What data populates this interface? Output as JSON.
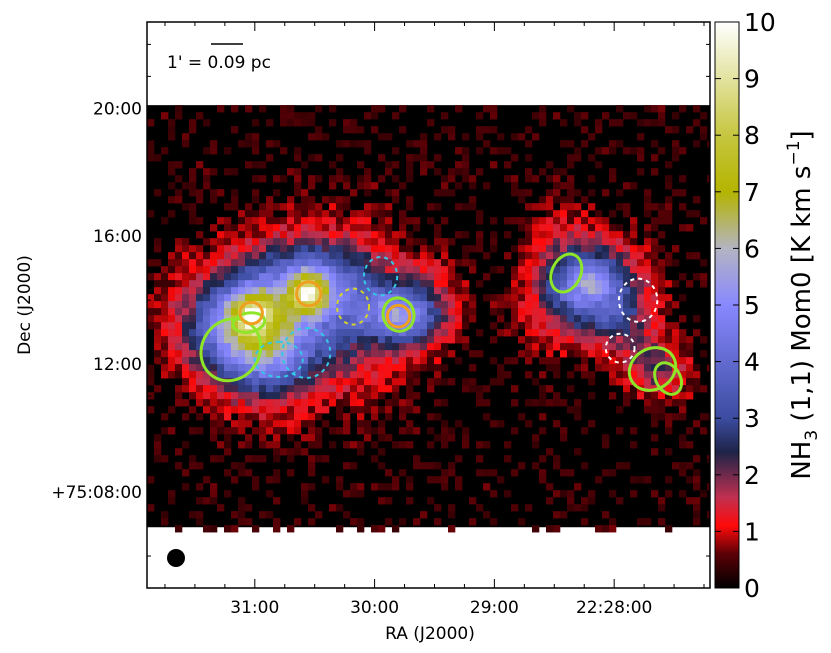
{
  "chart_data": {
    "type": "heatmap",
    "title": "",
    "xlabel": "RA (J2000)",
    "ylabel": "Dec (J2000)",
    "x_ticks": [
      {
        "label": "31:00",
        "ra_min": 31.0
      },
      {
        "label": "30:00",
        "ra_min": 30.0
      },
      {
        "label": "29:00",
        "ra_min": 29.0
      },
      {
        "label": "22:28:00",
        "ra_min": 28.0
      }
    ],
    "y_ticks": [
      {
        "label": "20:00",
        "dec_arcmin": 20
      },
      {
        "label": "16:00",
        "dec_arcmin": 16
      },
      {
        "label": "12:00",
        "dec_arcmin": 12
      },
      {
        "label": "+75:08:00",
        "dec_arcmin": 8
      }
    ],
    "xlim_ra_min": [
      31.9,
      27.2
    ],
    "ylim_dec_arcmin": [
      5.0,
      22.7
    ],
    "image_extent_dec_arcmin": [
      6.9,
      20.1
    ],
    "colorbar": {
      "label_parts": {
        "pre": "NH",
        "sub": "3",
        "mid": " (1,1) Mom0 [K km s",
        "sup": "−1",
        "post": "]"
      },
      "range": [
        0,
        10
      ],
      "ticks": [
        "0",
        "1",
        "2",
        "3",
        "4",
        "5",
        "6",
        "7",
        "8",
        "9",
        "10"
      ],
      "stops": [
        {
          "v": 0,
          "color": "#000000"
        },
        {
          "v": 0.6,
          "color": "#5a0006"
        },
        {
          "v": 1.1,
          "color": "#ff0a0a"
        },
        {
          "v": 1.6,
          "color": "#c03050"
        },
        {
          "v": 2.4,
          "color": "#1e2448"
        },
        {
          "v": 3.0,
          "color": "#3c4ca0"
        },
        {
          "v": 5.0,
          "color": "#8888ff"
        },
        {
          "v": 6.0,
          "color": "#b4b4c2"
        },
        {
          "v": 7.0,
          "color": "#b4b400"
        },
        {
          "v": 8.0,
          "color": "#c6c640"
        },
        {
          "v": 10.0,
          "color": "#ffffff"
        }
      ]
    },
    "emission": [
      {
        "ra_min": 31.25,
        "dec_arcmin": 12.7,
        "a": 0.42,
        "b": 1.2,
        "angle_deg": 48,
        "amp": 2.4
      },
      {
        "ra_min": 31.1,
        "dec_arcmin": 13.2,
        "a": 0.3,
        "b": 0.9,
        "angle_deg": 40,
        "amp": 2.2
      },
      {
        "ra_min": 31.02,
        "dec_arcmin": 13.6,
        "a": 0.13,
        "b": 0.5,
        "angle_deg": 20,
        "amp": 3.5
      },
      {
        "ra_min": 30.95,
        "dec_arcmin": 13.3,
        "a": 0.45,
        "b": 1.1,
        "angle_deg": 70,
        "amp": 1.6
      },
      {
        "ra_min": 30.7,
        "dec_arcmin": 14.0,
        "a": 0.4,
        "b": 1.2,
        "angle_deg": 90,
        "amp": 2.6
      },
      {
        "ra_min": 30.55,
        "dec_arcmin": 14.2,
        "a": 0.12,
        "b": 0.45,
        "angle_deg": 0,
        "amp": 4.2
      },
      {
        "ra_min": 30.45,
        "dec_arcmin": 14.6,
        "a": 0.35,
        "b": 0.8,
        "angle_deg": 0,
        "amp": 1.8
      },
      {
        "ra_min": 30.2,
        "dec_arcmin": 13.6,
        "a": 0.5,
        "b": 1.4,
        "angle_deg": 90,
        "amp": 2.3
      },
      {
        "ra_min": 29.8,
        "dec_arcmin": 13.5,
        "a": 0.22,
        "b": 0.6,
        "angle_deg": 10,
        "amp": 3.6
      },
      {
        "ra_min": 29.55,
        "dec_arcmin": 13.9,
        "a": 0.28,
        "b": 0.8,
        "angle_deg": 90,
        "amp": 1.6
      },
      {
        "ra_min": 30.85,
        "dec_arcmin": 12.3,
        "a": 0.3,
        "b": 1.0,
        "angle_deg": 90,
        "amp": 1.3
      },
      {
        "ra_min": 28.25,
        "dec_arcmin": 14.4,
        "a": 0.28,
        "b": 1.4,
        "angle_deg": 60,
        "amp": 2.8
      },
      {
        "ra_min": 28.18,
        "dec_arcmin": 14.6,
        "a": 0.12,
        "b": 0.55,
        "angle_deg": 60,
        "amp": 1.4
      },
      {
        "ra_min": 28.35,
        "dec_arcmin": 15.0,
        "a": 0.4,
        "b": 0.9,
        "angle_deg": 70,
        "amp": 1.2
      },
      {
        "ra_min": 27.95,
        "dec_arcmin": 13.6,
        "a": 0.25,
        "b": 0.9,
        "angle_deg": 55,
        "amp": 1.8
      },
      {
        "ra_min": 27.65,
        "dec_arcmin": 11.9,
        "a": 0.22,
        "b": 0.7,
        "angle_deg": 30,
        "amp": 2.0
      }
    ],
    "regions": [
      {
        "style": "green",
        "ra_min": 31.2,
        "dec_arcmin": 12.45,
        "a": 0.24,
        "b": 1.0,
        "angle_deg": 55
      },
      {
        "style": "green",
        "ra_min": 31.05,
        "dec_arcmin": 13.3,
        "a": 0.08,
        "b": 0.5,
        "angle_deg": 10
      },
      {
        "style": "green",
        "ra_min": 29.8,
        "dec_arcmin": 13.55,
        "a": 0.14,
        "b": 0.48,
        "angle_deg": 20
      },
      {
        "style": "green",
        "ra_min": 28.4,
        "dec_arcmin": 14.85,
        "a": 0.12,
        "b": 0.62,
        "angle_deg": 65
      },
      {
        "style": "green",
        "ra_min": 27.68,
        "dec_arcmin": 11.85,
        "a": 0.17,
        "b": 0.75,
        "angle_deg": 30
      },
      {
        "style": "green",
        "ra_min": 27.55,
        "dec_arcmin": 11.55,
        "a": 0.14,
        "b": 0.38,
        "angle_deg": 30
      },
      {
        "style": "orange",
        "ra_min": 31.03,
        "dec_arcmin": 13.6,
        "a": 0.09,
        "b": 0.35,
        "angle_deg": 0
      },
      {
        "style": "orange",
        "ra_min": 30.55,
        "dec_arcmin": 14.2,
        "a": 0.1,
        "b": 0.38,
        "angle_deg": 0
      },
      {
        "style": "orange",
        "ra_min": 29.8,
        "dec_arcmin": 13.5,
        "a": 0.09,
        "b": 0.35,
        "angle_deg": 0
      },
      {
        "style": "cyan-dashed",
        "ra_min": 30.8,
        "dec_arcmin": 12.15,
        "a": 0.2,
        "b": 0.55,
        "angle_deg": 90
      },
      {
        "style": "cyan-dashed",
        "ra_min": 30.57,
        "dec_arcmin": 12.35,
        "a": 0.2,
        "b": 0.78,
        "angle_deg": 90
      },
      {
        "style": "cyan-dashed",
        "ra_min": 29.95,
        "dec_arcmin": 14.75,
        "a": 0.16,
        "b": 0.52,
        "angle_deg": 0
      },
      {
        "style": "yellow-dashed",
        "ra_min": 30.18,
        "dec_arcmin": 13.8,
        "a": 0.15,
        "b": 0.5,
        "angle_deg": 0
      },
      {
        "style": "white-dashed",
        "ra_min": 27.8,
        "dec_arcmin": 14.0,
        "a": 0.18,
        "b": 0.6,
        "angle_deg": 0
      },
      {
        "style": "white-dashed",
        "ra_min": 27.95,
        "dec_arcmin": 12.5,
        "a": 0.12,
        "b": 0.45,
        "angle_deg": 0
      }
    ],
    "scalebar_label": "1' = 0.09 pc",
    "scalebar_arcmin": 1
  }
}
